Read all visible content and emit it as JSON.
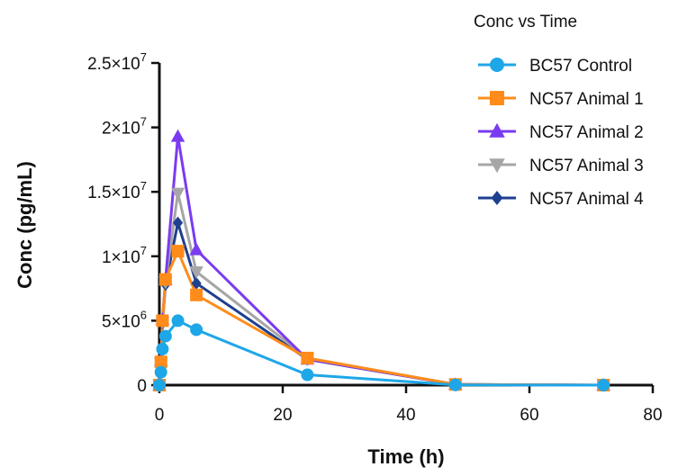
{
  "chart_data": {
    "type": "line",
    "legend_title": "Conc vs Time",
    "legend_position": "top-right",
    "xlabel": "Time (h)",
    "ylabel": "Conc (pg/mL)",
    "xlim": [
      0,
      80
    ],
    "ylim": [
      0,
      25000000
    ],
    "xticks": [
      0,
      20,
      40,
      60,
      80
    ],
    "xtick_labels": [
      "0",
      "20",
      "40",
      "60",
      "80"
    ],
    "yticks": [
      0,
      5000000,
      10000000,
      15000000,
      20000000,
      25000000
    ],
    "ytick_labels": [
      {
        "mant": "0",
        "exp": ""
      },
      {
        "mant": "5×10",
        "exp": "6"
      },
      {
        "mant": "1×10",
        "exp": "7"
      },
      {
        "mant": "1.5×10",
        "exp": "7"
      },
      {
        "mant": "2×10",
        "exp": "7"
      },
      {
        "mant": "2.5×10",
        "exp": "7"
      }
    ],
    "grid": false,
    "x": [
      0,
      0.25,
      0.5,
      1,
      3,
      6,
      24,
      48,
      72
    ],
    "series": [
      {
        "name": "BC57 Control",
        "color": "#1ea7e8",
        "marker": "circle",
        "values": [
          0,
          1000000,
          2800000,
          3800000,
          5000000,
          4300000,
          800000,
          20000,
          0
        ]
      },
      {
        "name": "NC57 Animal 1",
        "color": "#ff8c1a",
        "marker": "square",
        "values": [
          0,
          1800000,
          5000000,
          8200000,
          10400000,
          7000000,
          2100000,
          50000,
          0
        ]
      },
      {
        "name": "NC57 Animal 2",
        "color": "#7a3bf0",
        "marker": "triangle-up",
        "values": [
          0,
          1900000,
          5100000,
          8200000,
          19300000,
          10500000,
          2000000,
          50000,
          0
        ]
      },
      {
        "name": "NC57 Animal 3",
        "color": "#a6a6a6",
        "marker": "triangle-down",
        "values": [
          0,
          1700000,
          4900000,
          8000000,
          14900000,
          8800000,
          2100000,
          50000,
          0
        ]
      },
      {
        "name": "NC57 Animal 4",
        "color": "#1f3f8f",
        "marker": "diamond",
        "values": [
          0,
          1600000,
          4800000,
          7800000,
          12600000,
          7900000,
          2000000,
          50000,
          0
        ]
      }
    ]
  }
}
